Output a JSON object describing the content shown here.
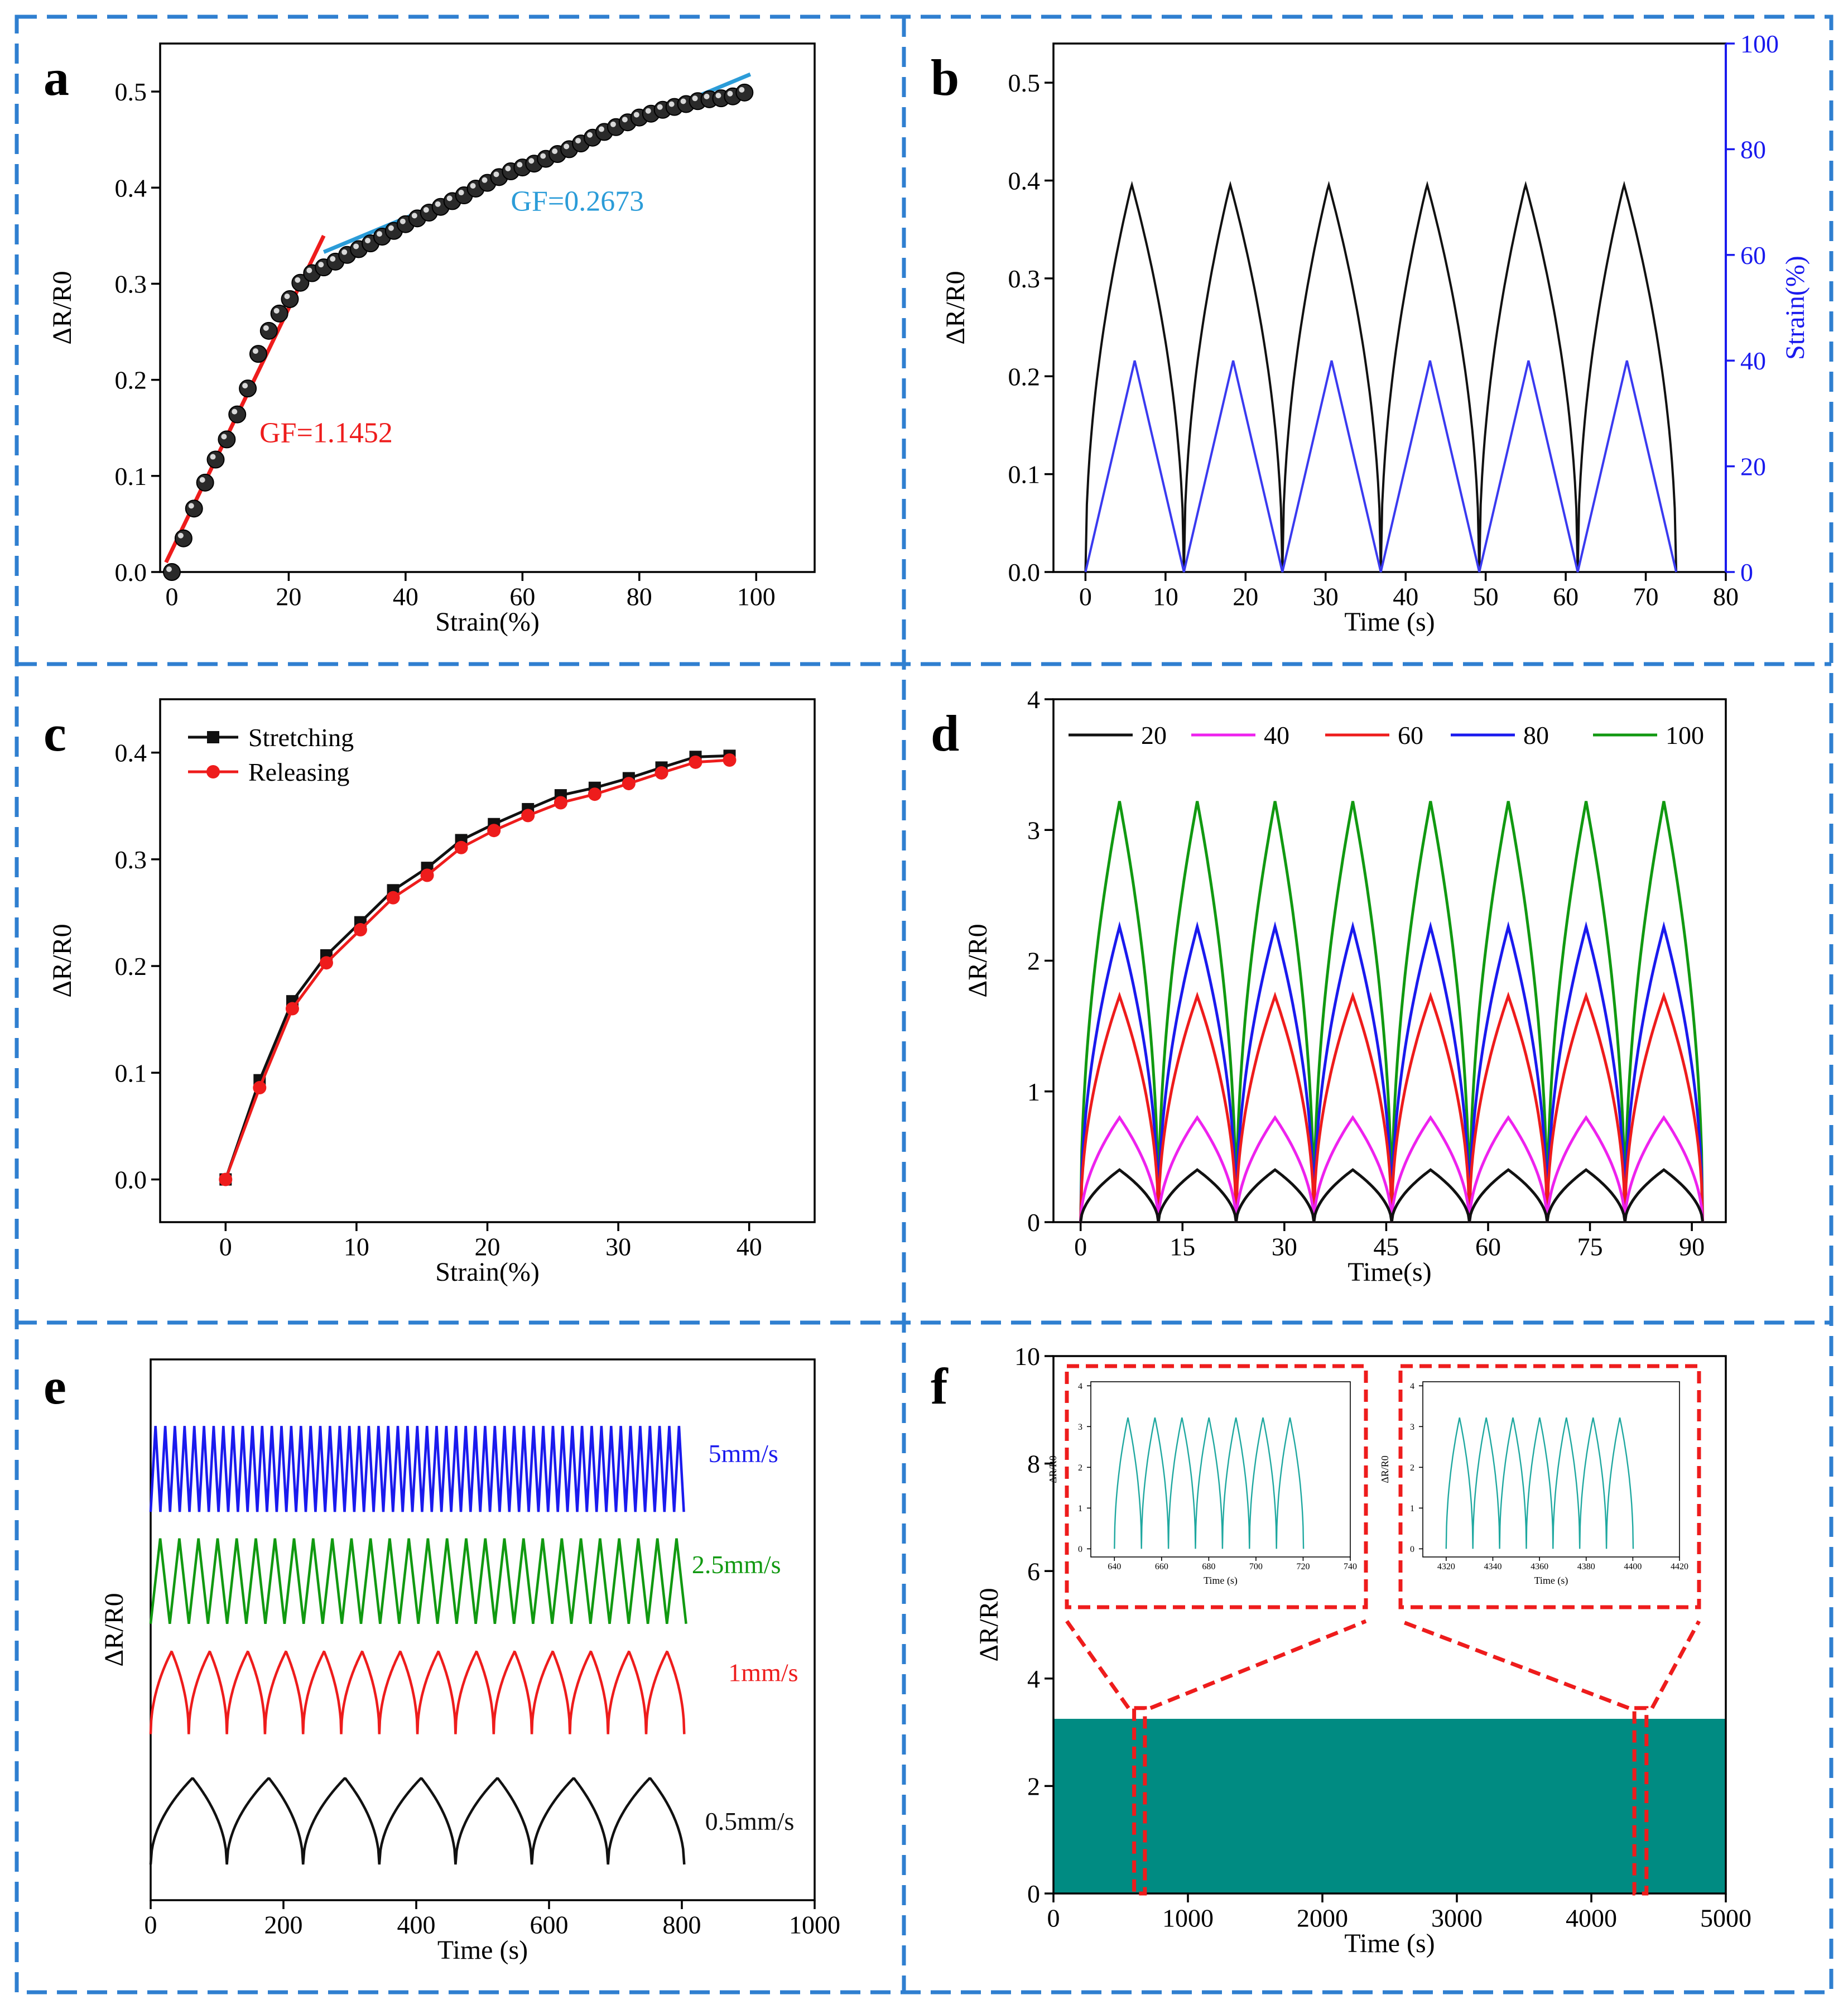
{
  "figure": {
    "panel_letters": [
      "a",
      "b",
      "c",
      "d",
      "e",
      "f"
    ],
    "frame_color": "#2f7fd0"
  },
  "chart_data": [
    {
      "id": "a",
      "type": "scatter",
      "xlabel": "Strain(%)",
      "ylabel": "ΔR/R0",
      "xlim": [
        -2,
        110
      ],
      "ylim": [
        0,
        0.55
      ],
      "xticks": [
        0,
        20,
        40,
        60,
        80,
        100
      ],
      "yticks": [
        0.0,
        0.1,
        0.2,
        0.3,
        0.4,
        0.5
      ],
      "ytick_format": 1,
      "series": [
        {
          "name": "data",
          "color": "#111111",
          "x": [
            0,
            2,
            3.8,
            5.7,
            7.5,
            9.4,
            11.2,
            13,
            14.8,
            16.6,
            18.4,
            20.2,
            22,
            24,
            26,
            28,
            30,
            32,
            34,
            36,
            38,
            40,
            42,
            44,
            46,
            48,
            50,
            52,
            54,
            56,
            58,
            60,
            62,
            64,
            66,
            68,
            70,
            72,
            74,
            76,
            78,
            80,
            82,
            84,
            86,
            88,
            90,
            92,
            94,
            96,
            98
          ],
          "y": [
            0.0,
            0.035,
            0.066,
            0.093,
            0.117,
            0.138,
            0.164,
            0.191,
            0.227,
            0.251,
            0.269,
            0.284,
            0.301,
            0.311,
            0.317,
            0.323,
            0.33,
            0.336,
            0.342,
            0.349,
            0.355,
            0.362,
            0.368,
            0.374,
            0.38,
            0.386,
            0.392,
            0.399,
            0.405,
            0.411,
            0.417,
            0.421,
            0.425,
            0.43,
            0.435,
            0.44,
            0.446,
            0.452,
            0.458,
            0.463,
            0.468,
            0.473,
            0.477,
            0.481,
            0.484,
            0.487,
            0.49,
            0.492,
            0.493,
            0.495,
            0.499
          ]
        }
      ],
      "fit_lines": [
        {
          "name": "GF=1.1452",
          "color": "#ee1c1c",
          "x": [
            -1,
            26
          ],
          "y": [
            0.01,
            0.35
          ]
        },
        {
          "name": "GF=0.2673",
          "color": "#2b9cd8",
          "x": [
            26,
            99
          ],
          "y": [
            0.333,
            0.518
          ]
        }
      ],
      "annotations": [
        {
          "text": "GF=1.1452",
          "color": "#ee1c1c",
          "x": 15,
          "y": 0.135
        },
        {
          "text": "GF=0.2673",
          "color": "#2b9cd8",
          "x": 58,
          "y": 0.376
        }
      ]
    },
    {
      "id": "b",
      "type": "line",
      "xlabel": "Time (s)",
      "ylabel": "ΔR/R0",
      "ylabel_right": "Strain(%)",
      "xlim": [
        -4,
        80
      ],
      "ylim": [
        0,
        0.54
      ],
      "ylim_right": [
        0,
        100
      ],
      "xticks": [
        0,
        10,
        20,
        30,
        40,
        50,
        60,
        70,
        80
      ],
      "yticks": [
        0.0,
        0.1,
        0.2,
        0.3,
        0.4,
        0.5
      ],
      "ytick_format": 1,
      "yticks_right": [
        0,
        20,
        40,
        60,
        80,
        100
      ],
      "right_axis_color": "#1a1aee",
      "series": [
        {
          "name": "ΔR/R0",
          "color": "#111111",
          "axis": "left",
          "shape": "dome",
          "period": 12.3,
          "cycles": 6,
          "start": 0,
          "peak": 0.396,
          "rise_frac": 0.47,
          "exp": 0.5
        },
        {
          "name": "Strain",
          "color": "#3a3af0",
          "axis": "right",
          "shape": "triangle",
          "period": 12.3,
          "cycles": 6,
          "start": 0,
          "peak": 40,
          "rise_frac": 0.5
        }
      ]
    },
    {
      "id": "c",
      "type": "line",
      "xlabel": "Strain(%)",
      "ylabel": "ΔR/R0",
      "xlim": [
        -5,
        45
      ],
      "ylim": [
        -0.04,
        0.45
      ],
      "xticks": [
        0,
        10,
        20,
        30,
        40
      ],
      "yticks": [
        0.0,
        0.1,
        0.2,
        0.3,
        0.4
      ],
      "ytick_format": 1,
      "legend": "top-left",
      "series": [
        {
          "name": "Stretching",
          "color": "#111111",
          "marker": "square",
          "x": [
            0,
            2.6,
            5.1,
            7.7,
            10.3,
            12.8,
            15.4,
            18,
            20.5,
            23.1,
            25.6,
            28.2,
            30.8,
            33.3,
            35.9,
            38.5
          ],
          "y": [
            0.0,
            0.093,
            0.167,
            0.21,
            0.241,
            0.271,
            0.292,
            0.318,
            0.333,
            0.347,
            0.36,
            0.367,
            0.376,
            0.386,
            0.396,
            0.397
          ]
        },
        {
          "name": "Releasing",
          "color": "#ee1c1c",
          "marker": "circle",
          "x": [
            0,
            2.6,
            5.1,
            7.7,
            10.3,
            12.8,
            15.4,
            18,
            20.5,
            23.1,
            25.6,
            28.2,
            30.8,
            33.3,
            35.9,
            38.5
          ],
          "y": [
            0.0,
            0.086,
            0.16,
            0.203,
            0.234,
            0.264,
            0.285,
            0.311,
            0.327,
            0.341,
            0.353,
            0.361,
            0.371,
            0.381,
            0.391,
            0.393
          ]
        }
      ]
    },
    {
      "id": "d",
      "type": "line",
      "xlabel": "Time(s)",
      "ylabel": "ΔR/R0",
      "xlim": [
        -4,
        95
      ],
      "ylim": [
        0,
        4
      ],
      "xticks": [
        0,
        15,
        30,
        45,
        60,
        75,
        90
      ],
      "yticks": [
        0,
        1,
        2,
        3,
        4
      ],
      "ytick_format": 0,
      "legend": "top",
      "series": [
        {
          "name": "20",
          "color": "#111111",
          "shape": "dome",
          "period": 11.45,
          "cycles": 8,
          "start": 0,
          "peak": 0.4,
          "rise_frac": 0.5,
          "exp": 0.55
        },
        {
          "name": "40",
          "color": "#ee22ee",
          "shape": "dome",
          "period": 11.45,
          "cycles": 8,
          "start": 0,
          "peak": 0.8,
          "rise_frac": 0.5,
          "exp": 0.55
        },
        {
          "name": "60",
          "color": "#ee1c1c",
          "shape": "dome",
          "period": 11.45,
          "cycles": 8,
          "start": 0,
          "peak": 1.73,
          "rise_frac": 0.5,
          "exp": 0.5
        },
        {
          "name": "80",
          "color": "#1a1aee",
          "shape": "dome",
          "period": 11.45,
          "cycles": 8,
          "start": 0,
          "peak": 2.26,
          "rise_frac": 0.5,
          "exp": 0.5
        },
        {
          "name": "100",
          "color": "#119911",
          "shape": "dome",
          "period": 11.45,
          "cycles": 8,
          "start": 0,
          "peak": 3.22,
          "rise_frac": 0.5,
          "exp": 0.5
        }
      ]
    },
    {
      "id": "e",
      "type": "line",
      "xlabel": "Time (s)",
      "ylabel": "ΔR/R0",
      "xlim": [
        0,
        1000
      ],
      "ylim": [
        0,
        1
      ],
      "xticks": [
        0,
        200,
        400,
        600,
        800,
        1000
      ],
      "yticks": [],
      "series": [
        {
          "name": "5mm/s",
          "color": "#1a1aee",
          "shape": "triangle",
          "period": 14.6,
          "cycles": 55,
          "start": 0,
          "base": 0.718,
          "peak": 0.159,
          "rise_frac": 0.5,
          "label_x": 840,
          "label_y": 0.81
        },
        {
          "name": "2.5mm/s",
          "color": "#119911",
          "shape": "triangle",
          "period": 28.8,
          "cycles": 28,
          "start": 0,
          "base": 0.511,
          "peak": 0.158,
          "rise_frac": 0.5,
          "label_x": 815,
          "label_y": 0.605
        },
        {
          "name": "1mm/s",
          "color": "#ee1c1c",
          "shape": "dome",
          "period": 57.4,
          "cycles": 14,
          "start": 0,
          "base": 0.307,
          "peak": 0.153,
          "rise_frac": 0.55,
          "exp": 0.5,
          "label_x": 870,
          "label_y": 0.405
        },
        {
          "name": "0.5mm/s",
          "color": "#111111",
          "shape": "dome",
          "period": 114.8,
          "cycles": 7,
          "start": 0,
          "base": 0.066,
          "peak": 0.16,
          "rise_frac": 0.55,
          "exp": 0.5,
          "label_x": 835,
          "label_y": 0.13
        }
      ]
    },
    {
      "id": "f",
      "type": "area",
      "xlabel": "Time (s)",
      "ylabel": "ΔR/R0",
      "xlim": [
        0,
        5000
      ],
      "ylim": [
        0,
        10
      ],
      "xticks": [
        0,
        1000,
        2000,
        3000,
        4000,
        5000
      ],
      "yticks": [
        0,
        2,
        4,
        6,
        8,
        10
      ],
      "ytick_format": 0,
      "fill_color": "#008b82",
      "fill_value": 3.25,
      "highlight_color": "#ee1c1c",
      "highlights": [
        [
          600,
          680
        ],
        [
          4320,
          4410
        ]
      ],
      "insets": [
        {
          "xlabel": "Time (s)",
          "ylabel": "ΔR/R0",
          "xlim": [
            630,
            740
          ],
          "ylim": [
            -0.2,
            4.1
          ],
          "xticks": [
            640,
            660,
            680,
            700,
            720,
            740
          ],
          "yticks": [
            0,
            1,
            2,
            3,
            4
          ],
          "series": {
            "color": "#1fa8a0",
            "shape": "dome",
            "period": 11.45,
            "cycles": 7,
            "start": 640,
            "peak": 3.22,
            "rise_frac": 0.5,
            "exp": 0.5
          }
        },
        {
          "xlabel": "Time (s)",
          "ylabel": "ΔR/R0",
          "xlim": [
            4310,
            4420
          ],
          "ylim": [
            -0.2,
            4.1
          ],
          "xticks": [
            4320,
            4340,
            4360,
            4380,
            4400,
            4420
          ],
          "yticks": [
            0,
            1,
            2,
            3,
            4
          ],
          "series": {
            "color": "#1fa8a0",
            "shape": "dome",
            "period": 11.45,
            "cycles": 7,
            "start": 4320,
            "peak": 3.22,
            "rise_frac": 0.5,
            "exp": 0.5
          }
        }
      ]
    }
  ]
}
